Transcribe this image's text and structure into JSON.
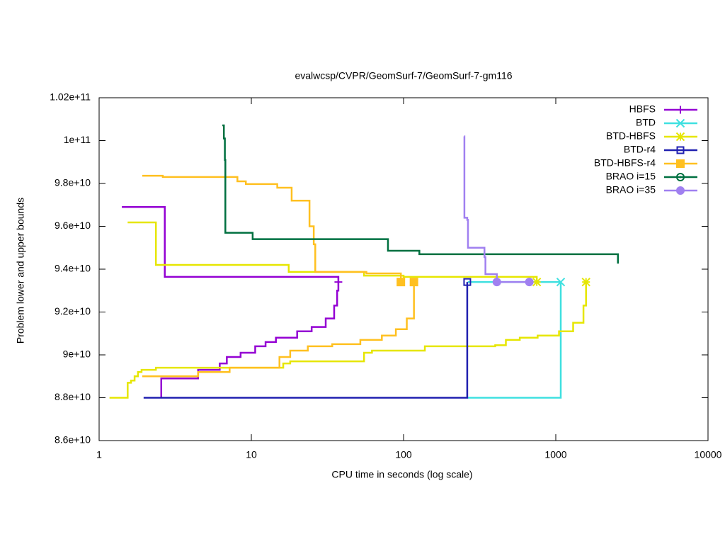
{
  "chart_data": {
    "type": "line",
    "steps": true,
    "title": "evalwcsp/CVPR/GeomSurf-7/GeomSurf-7-gm116",
    "xlabel": "CPU time in seconds (log scale)",
    "ylabel": "Problem lower and upper bounds",
    "xscale": "log",
    "xlim": [
      1,
      10000
    ],
    "xticks": [
      1,
      10,
      100,
      1000,
      10000
    ],
    "ylim": [
      86000000000.0,
      102000000000.0
    ],
    "yticks": [
      {
        "value": 86000000000.0,
        "label": "8.6e+10"
      },
      {
        "value": 88000000000.0,
        "label": "8.8e+10"
      },
      {
        "value": 90000000000.0,
        "label": "9e+10"
      },
      {
        "value": 92000000000.0,
        "label": "9.2e+10"
      },
      {
        "value": 94000000000.0,
        "label": "9.4e+10"
      },
      {
        "value": 96000000000.0,
        "label": "9.6e+10"
      },
      {
        "value": 98000000000.0,
        "label": "9.8e+10"
      },
      {
        "value": 100000000000.0,
        "label": "1e+11"
      },
      {
        "value": 102000000000.0,
        "label": "1.02e+11"
      }
    ],
    "legend": "top-right",
    "series": [
      {
        "name": "HBFS",
        "color": "#9400d3",
        "marker": "plus",
        "x": [
          1.41,
          2.7,
          37.3
        ],
        "values": [
          96900000000.0,
          93640000000.0,
          93400000000.0
        ],
        "lower_x": [
          2.56,
          2.56,
          4.47,
          6.2,
          6.9,
          8.5,
          10.6,
          12.4,
          14.5,
          20,
          24.9,
          30.8,
          35,
          36.6,
          37.3
        ],
        "lower_values": [
          88000000000.0,
          88900000000.0,
          89300000000.0,
          89600000000.0,
          89900000000.0,
          90100000000.0,
          90400000000.0,
          90600000000.0,
          90800000000.0,
          91100000000.0,
          91300000000.0,
          91700000000.0,
          92300000000.0,
          93000000000.0,
          93400000000.0
        ],
        "points_x": [
          37.3
        ],
        "points_values": [
          93400000000.0
        ]
      },
      {
        "name": "BTD",
        "color": "#3fe0e0",
        "marker": "x",
        "x": [
          264,
          1078
        ],
        "values": [
          93400000000.0,
          93400000000.0
        ],
        "lower_x": [
          264,
          1078
        ],
        "lower_values": [
          88000000000.0,
          93400000000.0
        ],
        "points_x": [
          1078
        ],
        "points_values": [
          93400000000.0
        ]
      },
      {
        "name": "BTD-HBFS",
        "color": "#e6e600",
        "marker": "star",
        "x": [
          1.54,
          2.36,
          17.6,
          55,
          100,
          750
        ],
        "values": [
          96180000000.0,
          94200000000.0,
          93870000000.0,
          93700000000.0,
          93640000000.0,
          93400000000.0
        ],
        "lower_x": [
          1.17,
          1.54,
          1.62,
          1.71,
          1.8,
          1.9,
          2.36,
          16.2,
          18,
          55,
          62,
          138,
          400,
          470,
          580,
          760,
          1050,
          1300,
          1520,
          1580
        ],
        "lower_values": [
          88000000000.0,
          88700000000.0,
          88800000000.0,
          89000000000.0,
          89200000000.0,
          89300000000.0,
          89400000000.0,
          89600000000.0,
          89700000000.0,
          90100000000.0,
          90200000000.0,
          90400000000.0,
          90450000000.0,
          90700000000.0,
          90800000000.0,
          90900000000.0,
          91100000000.0,
          91500000000.0,
          92300000000.0,
          93400000000.0
        ],
        "points_x": [
          750,
          1580
        ],
        "points_values": [
          93400000000.0,
          93400000000.0
        ]
      },
      {
        "name": "BTD-r4",
        "color": "#2020b0",
        "marker": "open-square",
        "x": [
          262
        ],
        "values": [
          93400000000.0
        ],
        "lower_x": [
          1.96,
          262
        ],
        "lower_values": [
          88000000000.0,
          93400000000.0
        ],
        "points_x": [
          262
        ],
        "points_values": [
          93400000000.0
        ]
      },
      {
        "name": "BTD-HBFS-r4",
        "color": "#ffc020",
        "marker": "filled-square",
        "x": [
          1.92,
          2.62,
          8.1,
          9.2,
          14.8,
          18.4,
          24.1,
          25.7,
          26.3,
          57,
          96
        ],
        "values": [
          98360000000.0,
          98300000000.0,
          98100000000.0,
          97970000000.0,
          97800000000.0,
          97200000000.0,
          96000000000.0,
          95160000000.0,
          93870000000.0,
          93800000000.0,
          93400000000.0
        ],
        "lower_x": [
          1.92,
          4.47,
          7.2,
          15.3,
          18,
          23.5,
          34,
          52,
          72,
          89,
          105,
          117
        ],
        "lower_values": [
          89000000000.0,
          89200000000.0,
          89400000000.0,
          89900000000.0,
          90200000000.0,
          90400000000.0,
          90500000000.0,
          90700000000.0,
          90900000000.0,
          91200000000.0,
          91700000000.0,
          93400000000.0
        ],
        "points_x": [
          96,
          117
        ],
        "points_values": [
          93400000000.0,
          93400000000.0
        ]
      },
      {
        "name": "BRAO i=15",
        "color": "#007040",
        "marker": "open-circle",
        "x": [
          6.45,
          6.6,
          6.7,
          6.75,
          10.2,
          79,
          127,
          2560
        ],
        "values": [
          100710000000.0,
          100100000000.0,
          99100000000.0,
          95700000000.0,
          95400000000.0,
          94860000000.0,
          94700000000.0,
          94260000000.0
        ]
      },
      {
        "name": "BRAO i=35",
        "color": "#a080f0",
        "marker": "filled-circle",
        "x": [
          250,
          251,
          262,
          265,
          340,
          345,
          410
        ],
        "values": [
          100200000000.0,
          96400000000.0,
          96300000000.0,
          95000000000.0,
          94560000000.0,
          93770000000.0,
          93400000000.0
        ],
        "lower_x": [
          410,
          670
        ],
        "lower_values": [
          93400000000.0,
          93400000000.0
        ],
        "points_x": [
          410,
          670
        ],
        "points_values": [
          93400000000.0,
          93400000000.0
        ]
      }
    ]
  }
}
